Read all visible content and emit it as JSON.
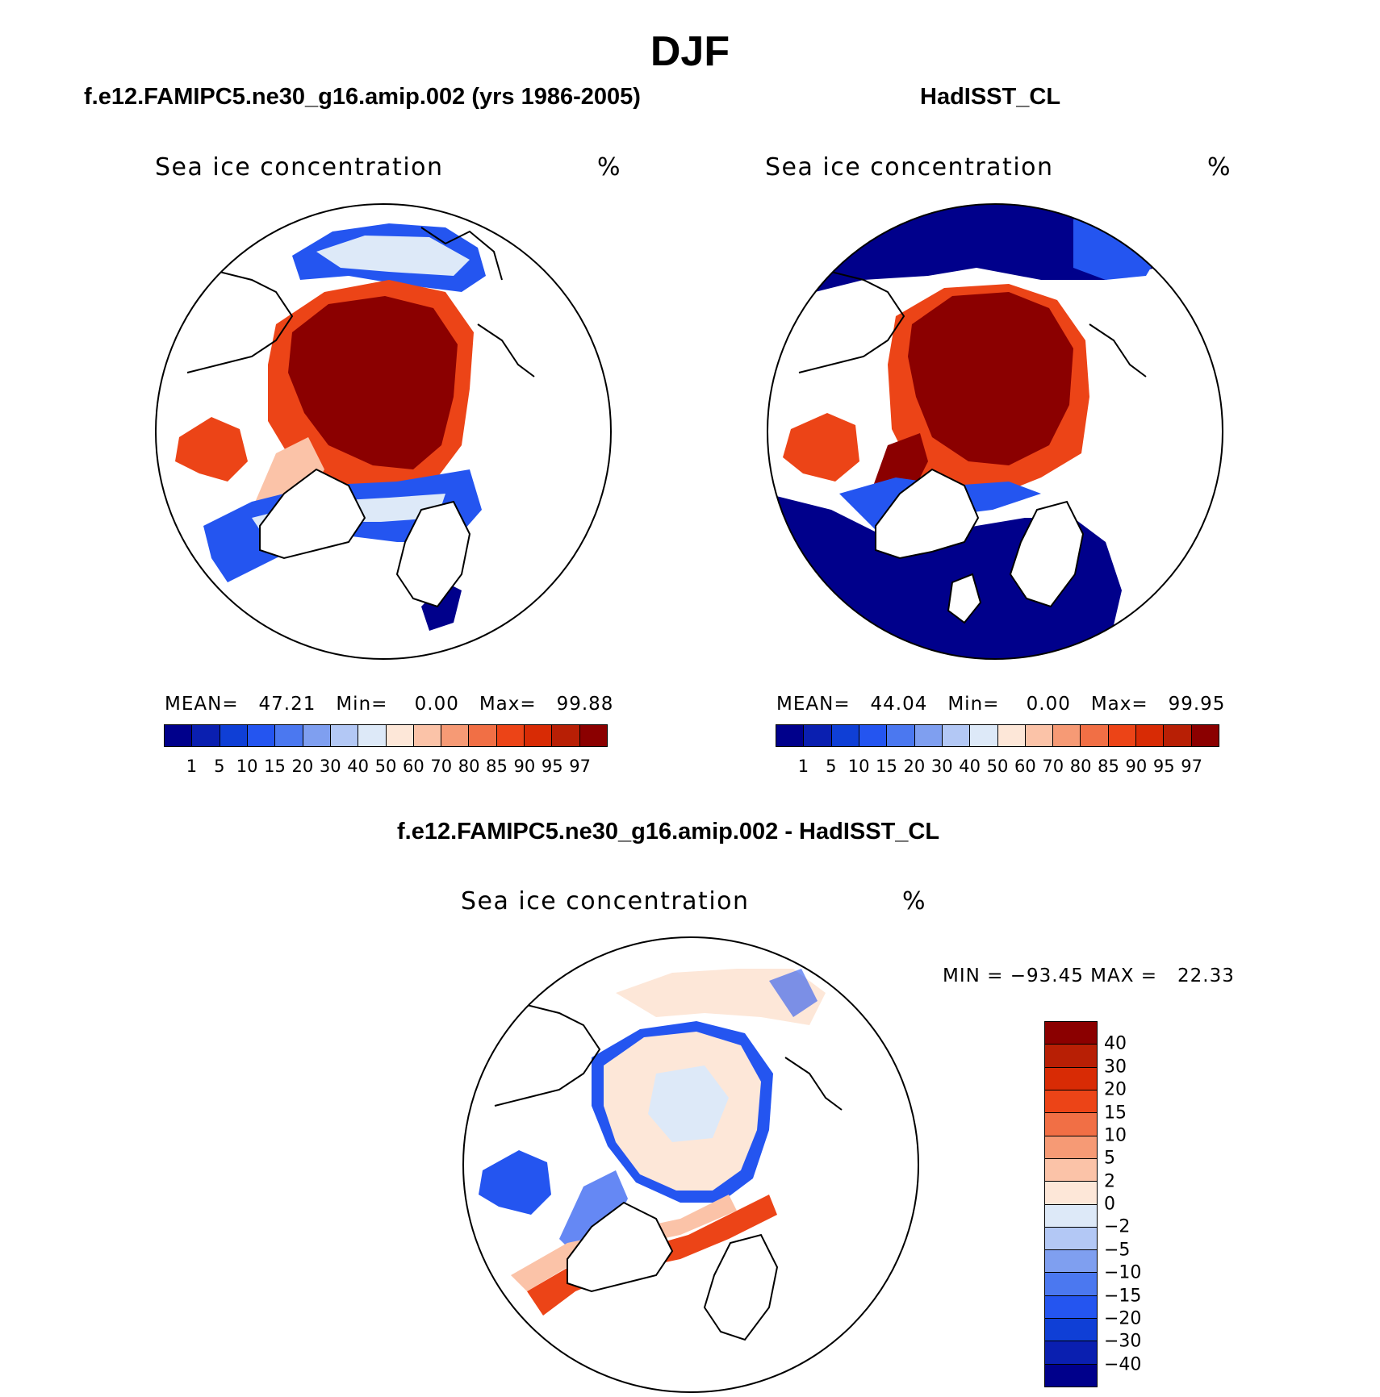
{
  "figure_title": "DJF",
  "panels": [
    {
      "id": "model",
      "title": "f.e12.FAMIPC5.ne30_g16.amip.002 (yrs 1986-2005)",
      "variable": "Sea ice concentration",
      "units": "%",
      "stats": {
        "mean_label": "MEAN=",
        "mean": "47.21",
        "min_label": "Min=",
        "min": "0.00",
        "max_label": "Max=",
        "max": "99.88"
      }
    },
    {
      "id": "obs",
      "title": "HadISST_CL",
      "variable": "Sea ice concentration",
      "units": "%",
      "stats": {
        "mean_label": "MEAN=",
        "mean": "44.04",
        "min_label": "Min=",
        "min": "0.00",
        "max_label": "Max=",
        "max": "99.95"
      }
    },
    {
      "id": "diff",
      "title": "f.e12.FAMIPC5.ne30_g16.amip.002 - HadISST_CL",
      "variable": "Sea ice concentration",
      "units": "%",
      "stats_text": "MIN = −93.45 MAX =   22.33"
    }
  ],
  "colorbar_abs": {
    "labels": [
      "1",
      "5",
      "10",
      "15",
      "20",
      "30",
      "40",
      "50",
      "60",
      "70",
      "80",
      "85",
      "90",
      "95",
      "97"
    ],
    "colors": [
      "#00008b",
      "#0a1fb0",
      "#0f3fd6",
      "#2455f0",
      "#4b78f0",
      "#7f9ff0",
      "#b3c8f5",
      "#dde9f8",
      "#fde7d8",
      "#fbc3a8",
      "#f69a75",
      "#f16f45",
      "#ec4417",
      "#d82b05",
      "#b81f05",
      "#8b0000"
    ]
  },
  "colorbar_diff": {
    "labels": [
      "40",
      "30",
      "20",
      "15",
      "10",
      "5",
      "2",
      "0",
      "−2",
      "−5",
      "−10",
      "−15",
      "−20",
      "−30",
      "−40"
    ],
    "colors": [
      "#8b0000",
      "#b81f05",
      "#d82b05",
      "#ec4417",
      "#f16f45",
      "#f69a75",
      "#fbc3a8",
      "#fde7d8",
      "#dde9f8",
      "#b3c8f5",
      "#7f9ff0",
      "#4b78f0",
      "#2455f0",
      "#0f3fd6",
      "#0a1fb0",
      "#00008b"
    ]
  },
  "map_colors": {
    "ice_high": "#8b0000",
    "ice_mid": "#ec4417",
    "ice_low": "#fbc3a8",
    "edge_high": "#2455f0",
    "edge_low": "#00008b",
    "neutral_pos": "#fde7d8",
    "neutral_neg": "#dde9f8"
  }
}
